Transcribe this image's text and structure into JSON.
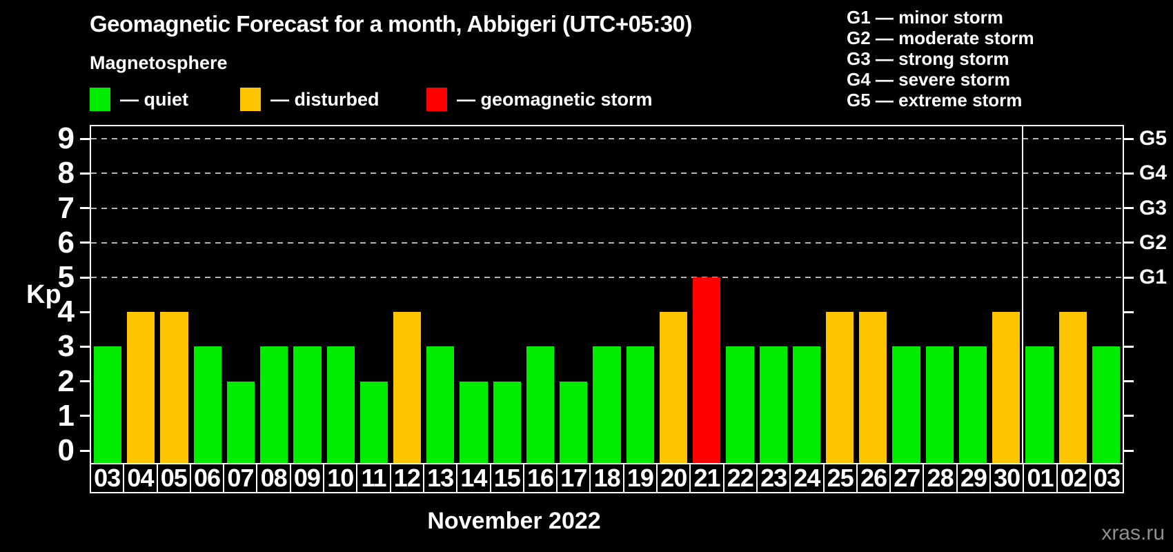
{
  "header": {
    "title": "Geomagnetic Forecast for a month, Abbigeri (UTC+05:30)",
    "subtitle": "Magnetosphere",
    "watermark": "xras.ru"
  },
  "legend": {
    "items": [
      {
        "label": "— quiet",
        "status": "quiet",
        "color": "#00ed00"
      },
      {
        "label": "— disturbed",
        "status": "disturbed",
        "color": "#ffc400"
      },
      {
        "label": "— geomagnetic storm",
        "status": "storm",
        "color": "#ff0000"
      }
    ]
  },
  "g_scale_legend": {
    "lines": [
      "G1 — minor storm",
      "G2 — moderate storm",
      "G3 — strong storm",
      "G4 — severe storm",
      "G5 — extreme storm"
    ]
  },
  "chart_data": {
    "type": "bar",
    "title": "Geomagnetic Forecast for a month, Abbigeri (UTC+05:30)",
    "xlabel": "November 2022",
    "ylabel": "Kp",
    "ylim": [
      0,
      9
    ],
    "grid": "dashed horizontal gridlines at Kp 5-9 only",
    "legend_position": "top-left",
    "categories": [
      "03",
      "04",
      "05",
      "06",
      "07",
      "08",
      "09",
      "10",
      "11",
      "12",
      "13",
      "14",
      "15",
      "16",
      "17",
      "18",
      "19",
      "20",
      "21",
      "22",
      "23",
      "24",
      "25",
      "26",
      "27",
      "28",
      "29",
      "30",
      "01",
      "02",
      "03"
    ],
    "values": [
      3,
      4,
      4,
      3,
      2,
      3,
      3,
      3,
      2,
      4,
      3,
      2,
      2,
      3,
      2,
      3,
      3,
      4,
      5,
      3,
      3,
      3,
      4,
      4,
      3,
      3,
      3,
      4,
      3,
      4,
      3
    ],
    "statuses": [
      "quiet",
      "disturbed",
      "disturbed",
      "quiet",
      "quiet",
      "quiet",
      "quiet",
      "quiet",
      "quiet",
      "disturbed",
      "quiet",
      "quiet",
      "quiet",
      "quiet",
      "quiet",
      "quiet",
      "quiet",
      "disturbed",
      "storm",
      "quiet",
      "quiet",
      "quiet",
      "disturbed",
      "disturbed",
      "quiet",
      "quiet",
      "quiet",
      "disturbed",
      "quiet",
      "disturbed",
      "quiet"
    ],
    "colors": {
      "quiet": "#00ed00",
      "disturbed": "#ffc400",
      "storm": "#ff0000"
    },
    "y_ticks": [
      0,
      1,
      2,
      3,
      4,
      5,
      6,
      7,
      8,
      9
    ],
    "gridline_levels": [
      5,
      6,
      7,
      8,
      9
    ],
    "right_axis_labels": [
      {
        "kp": 5,
        "label": "G1"
      },
      {
        "kp": 6,
        "label": "G2"
      },
      {
        "kp": 7,
        "label": "G3"
      },
      {
        "kp": 8,
        "label": "G4"
      },
      {
        "kp": 9,
        "label": "G5"
      }
    ],
    "month_separator_after_index": 27
  }
}
